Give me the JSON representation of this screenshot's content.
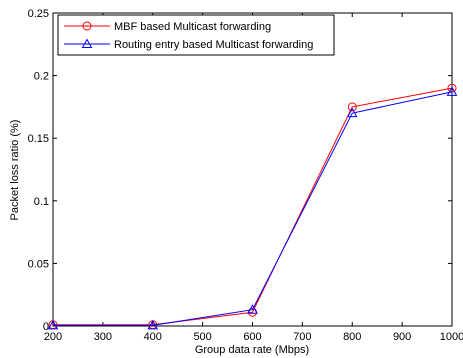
{
  "chart_data": {
    "type": "line",
    "xlabel": "Group data rate (Mbps)",
    "ylabel": "Packet loss ratio (%)",
    "xlim": [
      200,
      1000
    ],
    "ylim": [
      0,
      0.25
    ],
    "xticks": [
      200,
      300,
      400,
      500,
      600,
      700,
      800,
      900,
      1000
    ],
    "yticks": [
      0,
      0.05,
      0.1,
      0.15,
      0.2,
      0.25
    ],
    "xtick_labels": [
      "200",
      "300",
      "400",
      "500",
      "600",
      "700",
      "800",
      "900",
      "1000"
    ],
    "ytick_labels": [
      "0",
      "0.05",
      "0.1",
      "0.15",
      "0.2",
      "0.25"
    ],
    "grid": false,
    "legend_position": "top-left",
    "series": [
      {
        "name": "MBF based Multicast forwarding",
        "color": "#ff0000",
        "marker": "circle",
        "x": [
          200,
          400,
          600,
          800,
          1000
        ],
        "y": [
          0.001,
          0.001,
          0.011,
          0.175,
          0.19
        ]
      },
      {
        "name": "Routing entry based Multicast forwarding",
        "color": "#0000ff",
        "marker": "triangle",
        "x": [
          200,
          400,
          600,
          800,
          1000
        ],
        "y": [
          0.0005,
          0.0005,
          0.013,
          0.17,
          0.187
        ]
      }
    ]
  }
}
